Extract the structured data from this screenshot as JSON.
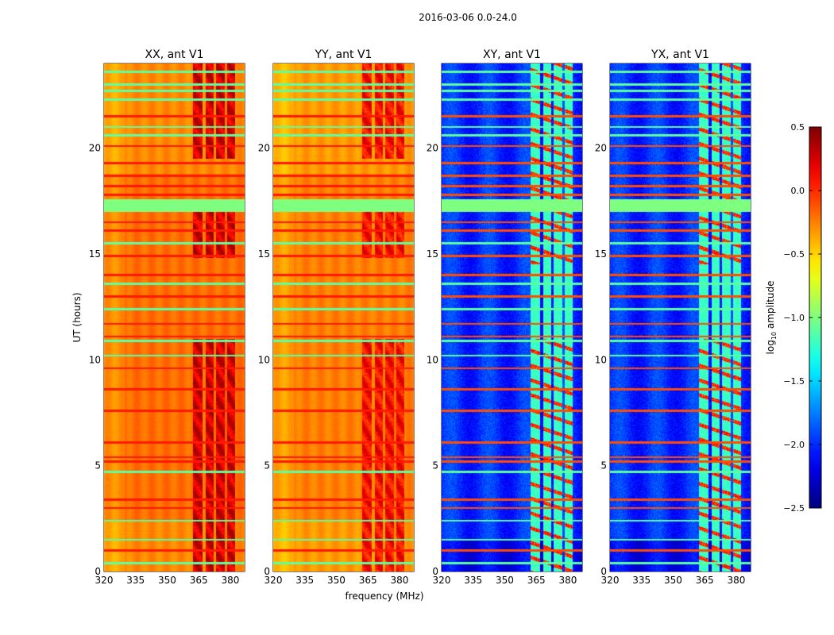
{
  "chart_data": {
    "type": "heatmap",
    "title": "2016-03-06 0.0-24.0",
    "xlabel": "frequency (MHz)",
    "ylabel": "UT (hours)",
    "xlim": [
      320,
      386.8
    ],
    "ylim": [
      0,
      24
    ],
    "xticks": [
      320,
      335,
      350,
      365,
      380
    ],
    "yticks": [
      0,
      5,
      10,
      15,
      20
    ],
    "panels": [
      {
        "title": "XX, ant V1",
        "kind": "auto",
        "base_level": -0.2,
        "band_level": 0.2
      },
      {
        "title": "YY, ant V1",
        "kind": "auto",
        "base_level": -0.25,
        "band_level": 0.05
      },
      {
        "title": "XY, ant V1",
        "kind": "cross",
        "base_level": -2.0,
        "band_level": -1.2
      },
      {
        "title": "YX, ant V1",
        "kind": "cross",
        "base_level": -2.0,
        "band_level": -1.2
      }
    ],
    "bright_channels_mhz": [
      [
        362.3,
        366.8
      ],
      [
        368.3,
        372.0
      ],
      [
        373.2,
        377.4
      ],
      [
        378.5,
        382.3
      ]
    ],
    "flagged_hours": [
      17.0,
      17.6
    ],
    "rfi_hours": [
      0.4,
      1.0,
      1.5,
      2.4,
      3.0,
      3.4,
      4.7,
      5.2,
      5.4,
      6.1,
      7.6,
      8.6,
      9.6,
      10.2,
      10.9,
      11.1,
      11.7,
      12.4,
      13.0,
      13.6,
      14.0,
      14.9,
      15.5,
      16.1,
      16.5,
      17.8,
      18.2,
      18.7,
      19.3,
      20.1,
      20.6,
      21.0,
      21.5,
      22.3,
      22.7,
      23.0,
      23.6
    ],
    "colorbar": {
      "label": "log10 amplitude",
      "range": [
        -2.5,
        0.5
      ],
      "ticks": [
        "0.5",
        "0.0",
        "−0.5",
        "−1.0",
        "−1.5",
        "−2.0",
        "−2.5"
      ],
      "colormap": "jet"
    }
  }
}
